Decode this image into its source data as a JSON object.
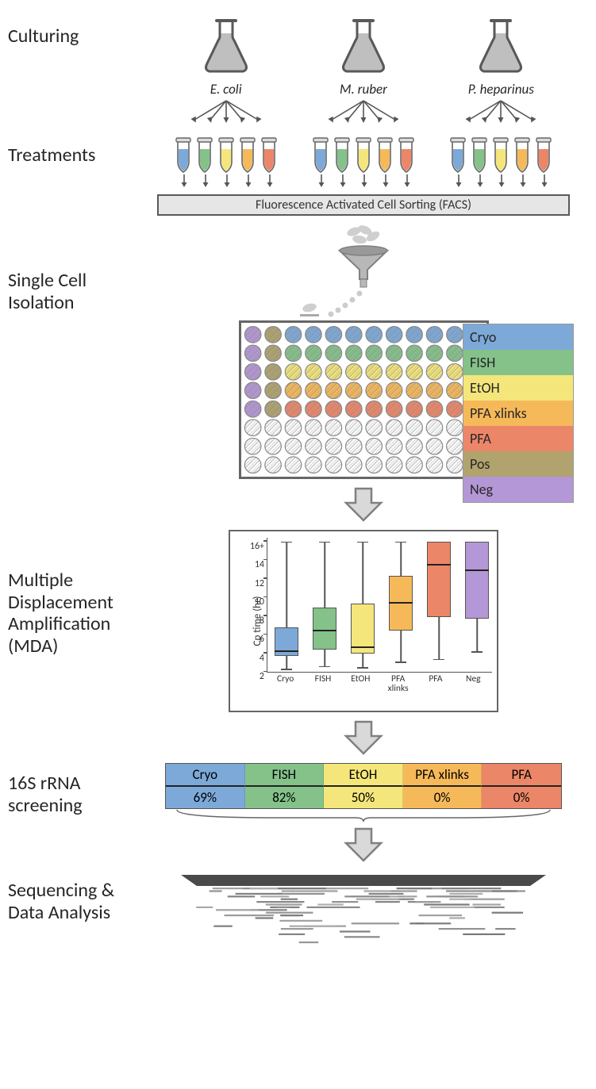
{
  "colors": {
    "cryo": "#7da9d9",
    "fish": "#84c28a",
    "etoh": "#f4e67b",
    "pfa_xlinks": "#f6b95a",
    "pfa": "#ec8668",
    "pos": "#b0a36e",
    "neg": "#b497d6",
    "flask_liquid": "#bfbfbf",
    "flask_stroke": "#595959",
    "arrow_fill": "#d9d9d9",
    "arrow_stroke": "#808080"
  },
  "culturing": {
    "label": "Culturing",
    "species": [
      "E. coli",
      "M. ruber",
      "P. heparinus"
    ]
  },
  "treatments": {
    "label": "Treatments",
    "tube_colors_order": [
      "cryo",
      "fish",
      "etoh",
      "pfa_xlinks",
      "pfa"
    ],
    "facs_label": "Fluorescence Activated Cell Sorting (FACS)"
  },
  "isolation": {
    "label": "Single Cell Isolation"
  },
  "legend": [
    {
      "label": "Cryo",
      "color_key": "cryo"
    },
    {
      "label": "FISH",
      "color_key": "fish"
    },
    {
      "label": "EtOH",
      "color_key": "etoh"
    },
    {
      "label": "PFA xlinks",
      "color_key": "pfa_xlinks"
    },
    {
      "label": "PFA",
      "color_key": "pfa"
    },
    {
      "label": "Pos",
      "color_key": "pos"
    },
    {
      "label": "Neg",
      "color_key": "neg"
    }
  ],
  "plate": {
    "cols": 12,
    "rows": 8,
    "row_colors": [
      "cryo",
      "fish",
      "etoh",
      "pfa_xlinks",
      "pfa",
      null,
      null,
      null
    ],
    "pos_col": 1,
    "neg_col": 0,
    "pos_rows": 5,
    "neg_rows": 5
  },
  "mda": {
    "label": "Multiple\nDisplacement\nAmplification\n(MDA)",
    "ylabel": "Cp time (hr)",
    "ylim": [
      2,
      16.5
    ],
    "yticks": [
      2,
      4,
      6,
      8,
      10,
      12,
      14,
      16
    ],
    "yticklabel_plus": "16+",
    "boxes": [
      {
        "name": "Cryo",
        "color_key": "cryo",
        "low": 2.3,
        "q1": 3.7,
        "med": 4.3,
        "q3": 6.8,
        "hi": 16
      },
      {
        "name": "FISH",
        "color_key": "fish",
        "low": 2.6,
        "q1": 4.4,
        "med": 6.5,
        "q3": 8.9,
        "hi": 16
      },
      {
        "name": "EtOH",
        "color_key": "etoh",
        "low": 2.5,
        "q1": 4.0,
        "med": 4.7,
        "q3": 9.3,
        "hi": 16
      },
      {
        "name": "PFA\nxlinks",
        "color_key": "pfa_xlinks",
        "low": 3.1,
        "q1": 6.4,
        "med": 9.5,
        "q3": 12.3,
        "hi": 16
      },
      {
        "name": "PFA",
        "color_key": "pfa",
        "low": 3.4,
        "q1": 7.9,
        "med": 13.6,
        "q3": 16,
        "hi": 16
      },
      {
        "name": "Neg",
        "color_key": "neg",
        "low": 4.2,
        "q1": 7.7,
        "med": 13.0,
        "q3": 16,
        "hi": 16
      }
    ]
  },
  "screening": {
    "label": "16S rRNA\nscreening",
    "columns": [
      {
        "label": "Cryo",
        "color_key": "cryo",
        "value": "69%"
      },
      {
        "label": "FISH",
        "color_key": "fish",
        "value": "82%"
      },
      {
        "label": "EtOH",
        "color_key": "etoh",
        "value": "50%"
      },
      {
        "label": "PFA xlinks",
        "color_key": "pfa_xlinks",
        "value": "0%"
      },
      {
        "label": "PFA",
        "color_key": "pfa",
        "value": "0%"
      }
    ]
  },
  "sequencing": {
    "label": "Sequencing &\nData Analysis"
  }
}
